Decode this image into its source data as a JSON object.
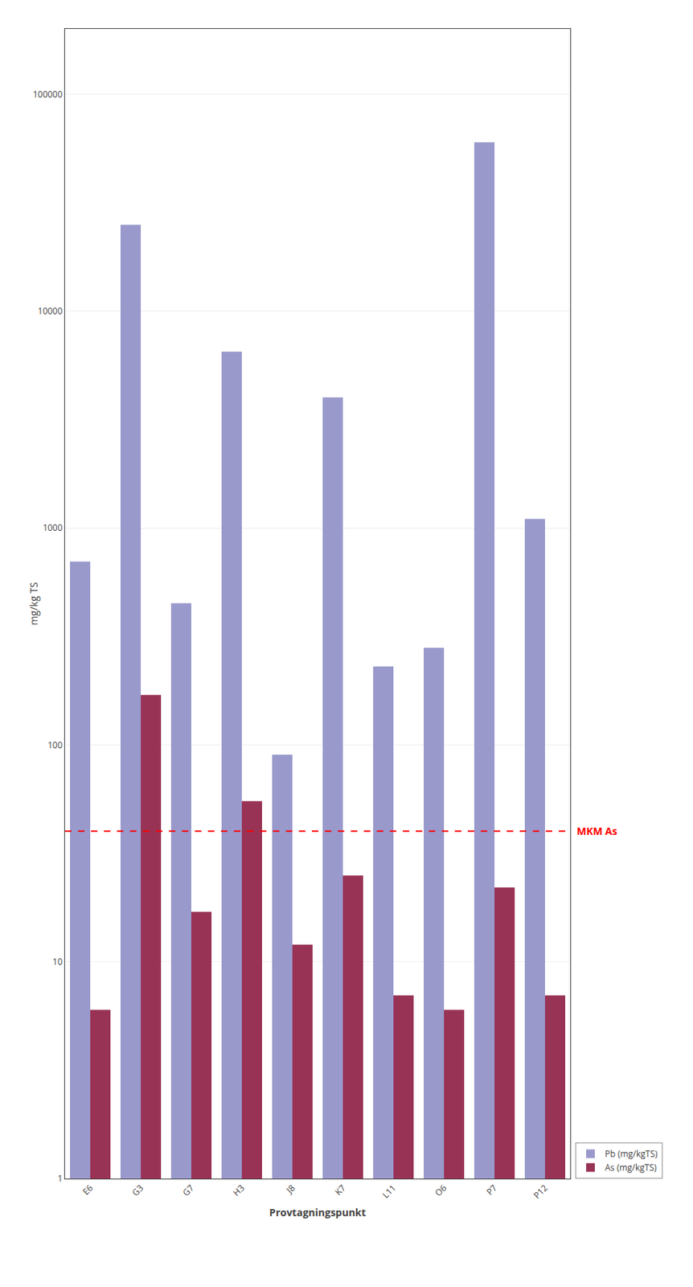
{
  "chart_data": {
    "type": "bar",
    "categories": [
      "E6",
      "G3",
      "G7",
      "H3",
      "J8",
      "K7",
      "L11",
      "O6",
      "P7",
      "P12"
    ],
    "series": [
      {
        "name": "Pb (mg/kgTS)",
        "color": "#9999CC",
        "values": [
          700,
          25000,
          450,
          6500,
          90,
          4000,
          230,
          280,
          60000,
          1100
        ]
      },
      {
        "name": "As (mg/kgTS)",
        "color": "#993355",
        "values": [
          6,
          170,
          17,
          55,
          12,
          25,
          7,
          6,
          22,
          7
        ]
      }
    ],
    "xlabel": "Provtagningspunkt",
    "ylabel": "mg/kg TS",
    "log": "y",
    "ylim": [
      1,
      200000
    ],
    "yticks": [
      1,
      10,
      100,
      1000,
      10000,
      100000
    ],
    "grid": "y",
    "legend": "lower right",
    "annotations": [
      {
        "text": "MKM As",
        "y": 40,
        "color": "#FF0000",
        "line_style": "dashed"
      }
    ]
  }
}
